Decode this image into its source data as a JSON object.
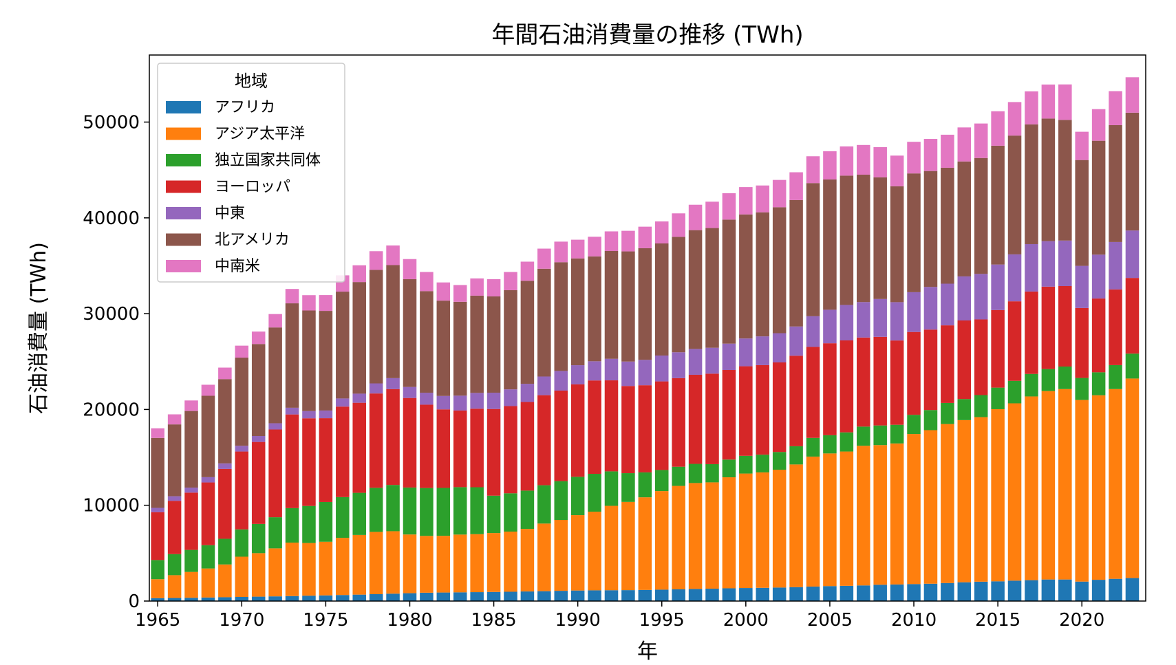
{
  "chart_data": {
    "type": "bar",
    "stacked": true,
    "title": "年間石油消費量の推移 (TWh)",
    "xlabel": "年",
    "ylabel": "石油消費量 (TWh)",
    "xlim": [
      1964.5,
      2023.8
    ],
    "ylim": [
      0,
      57000
    ],
    "xticks": [
      1965,
      1970,
      1975,
      1980,
      1985,
      1990,
      1995,
      2000,
      2005,
      2010,
      2015,
      2020
    ],
    "yticks": [
      0,
      10000,
      20000,
      30000,
      40000,
      50000
    ],
    "legend": {
      "title": "地域",
      "position": "upper-left"
    },
    "x": [
      1965,
      1966,
      1967,
      1968,
      1969,
      1970,
      1971,
      1972,
      1973,
      1974,
      1975,
      1976,
      1977,
      1978,
      1979,
      1980,
      1981,
      1982,
      1983,
      1984,
      1985,
      1986,
      1987,
      1988,
      1989,
      1990,
      1991,
      1992,
      1993,
      1994,
      1995,
      1996,
      1997,
      1998,
      1999,
      2000,
      2001,
      2002,
      2003,
      2004,
      2005,
      2006,
      2007,
      2008,
      2009,
      2010,
      2011,
      2012,
      2013,
      2014,
      2015,
      2016,
      2017,
      2018,
      2019,
      2020,
      2021,
      2022,
      2023
    ],
    "series": [
      {
        "name": "アフリカ",
        "color": "#1f77b4",
        "values": [
          300,
          320,
          340,
          370,
          400,
          430,
          460,
          490,
          520,
          560,
          590,
          630,
          670,
          720,
          770,
          820,
          870,
          890,
          910,
          930,
          950,
          970,
          1000,
          1030,
          1070,
          1100,
          1120,
          1130,
          1140,
          1160,
          1190,
          1220,
          1260,
          1290,
          1330,
          1360,
          1380,
          1410,
          1450,
          1510,
          1560,
          1590,
          1630,
          1700,
          1730,
          1770,
          1810,
          1880,
          1960,
          2020,
          2060,
          2130,
          2180,
          2250,
          2250,
          2030,
          2220,
          2320,
          2400
        ]
      },
      {
        "name": "アジア太平洋",
        "color": "#ff7f0e",
        "values": [
          1980,
          2380,
          2700,
          3030,
          3420,
          4200,
          4540,
          5010,
          5580,
          5500,
          5600,
          5970,
          6230,
          6500,
          6520,
          6130,
          5930,
          5920,
          6030,
          6050,
          6150,
          6280,
          6530,
          7060,
          7400,
          7870,
          8210,
          8810,
          9210,
          9670,
          10290,
          10800,
          11060,
          11100,
          11590,
          11950,
          12050,
          12300,
          12810,
          13570,
          13850,
          14020,
          14580,
          14580,
          14720,
          15670,
          16030,
          16600,
          16930,
          17180,
          17970,
          18510,
          19180,
          19670,
          19880,
          18960,
          19260,
          19810,
          20830
        ]
      },
      {
        "name": "独立国家共同体",
        "color": "#2ca02c",
        "values": [
          2000,
          2200,
          2300,
          2430,
          2680,
          2850,
          3050,
          3250,
          3600,
          3870,
          4150,
          4250,
          4400,
          4600,
          4830,
          4900,
          5000,
          5000,
          4950,
          4900,
          3900,
          4000,
          4000,
          4000,
          4050,
          4000,
          3950,
          3600,
          3000,
          2600,
          2200,
          2000,
          2000,
          1900,
          1850,
          1850,
          1850,
          1850,
          1900,
          1950,
          1900,
          2000,
          2000,
          2050,
          1950,
          2000,
          2100,
          2200,
          2200,
          2300,
          2250,
          2350,
          2350,
          2300,
          2350,
          2300,
          2400,
          2500,
          2600
        ]
      },
      {
        "name": "ヨーロッパ",
        "color": "#d62728",
        "values": [
          5000,
          5560,
          5980,
          6550,
          7290,
          8130,
          8560,
          9160,
          9780,
          9150,
          8750,
          9450,
          9400,
          9850,
          10000,
          9350,
          8700,
          8200,
          8000,
          8200,
          9050,
          9100,
          9250,
          9400,
          9450,
          9650,
          9750,
          9500,
          9100,
          9100,
          9250,
          9250,
          9300,
          9450,
          9350,
          9350,
          9350,
          9350,
          9450,
          9500,
          9600,
          9600,
          9300,
          9250,
          8800,
          8650,
          8400,
          8100,
          8200,
          7900,
          8100,
          8300,
          8600,
          8600,
          8400,
          7300,
          7700,
          7900,
          7900
        ]
      },
      {
        "name": "中東",
        "color": "#9467bd",
        "values": [
          450,
          480,
          520,
          550,
          580,
          600,
          620,
          650,
          700,
          750,
          800,
          850,
          950,
          1050,
          1150,
          1150,
          1250,
          1400,
          1550,
          1650,
          1700,
          1750,
          1900,
          1950,
          2050,
          2000,
          2000,
          2250,
          2550,
          2650,
          2700,
          2700,
          2700,
          2700,
          2750,
          2900,
          3000,
          3050,
          3050,
          3200,
          3500,
          3700,
          3700,
          3950,
          4000,
          4150,
          4450,
          4350,
          4600,
          4750,
          4750,
          4900,
          4950,
          4750,
          4750,
          4400,
          4580,
          4950,
          4950
        ]
      },
      {
        "name": "北アメリカ",
        "color": "#8c564b",
        "values": [
          7300,
          7500,
          8000,
          8500,
          8800,
          9200,
          9600,
          10000,
          10900,
          10500,
          10400,
          11150,
          11650,
          11850,
          11800,
          11250,
          10600,
          9950,
          9800,
          10150,
          10050,
          10350,
          10750,
          11250,
          11350,
          11150,
          10950,
          11250,
          11500,
          11650,
          11700,
          12050,
          12400,
          12500,
          12950,
          12950,
          12950,
          13150,
          13200,
          13900,
          13600,
          13500,
          13300,
          12700,
          12100,
          12400,
          12100,
          12100,
          12000,
          12100,
          12400,
          12400,
          12500,
          12800,
          12600,
          11050,
          11890,
          12200,
          12300
        ]
      },
      {
        "name": "中南米",
        "color": "#e377c2",
        "values": [
          1000,
          1050,
          1100,
          1150,
          1200,
          1250,
          1300,
          1400,
          1500,
          1600,
          1650,
          1700,
          1750,
          1950,
          2050,
          2100,
          2000,
          1900,
          1750,
          1800,
          1800,
          1900,
          2000,
          2100,
          2150,
          1950,
          2050,
          2050,
          2150,
          2250,
          2300,
          2450,
          2650,
          2750,
          2750,
          2850,
          2800,
          2850,
          2900,
          2800,
          2950,
          3050,
          3100,
          3150,
          3200,
          3300,
          3350,
          3450,
          3550,
          3600,
          3600,
          3500,
          3450,
          3550,
          3700,
          2950,
          3300,
          3550,
          3700
        ]
      }
    ]
  }
}
